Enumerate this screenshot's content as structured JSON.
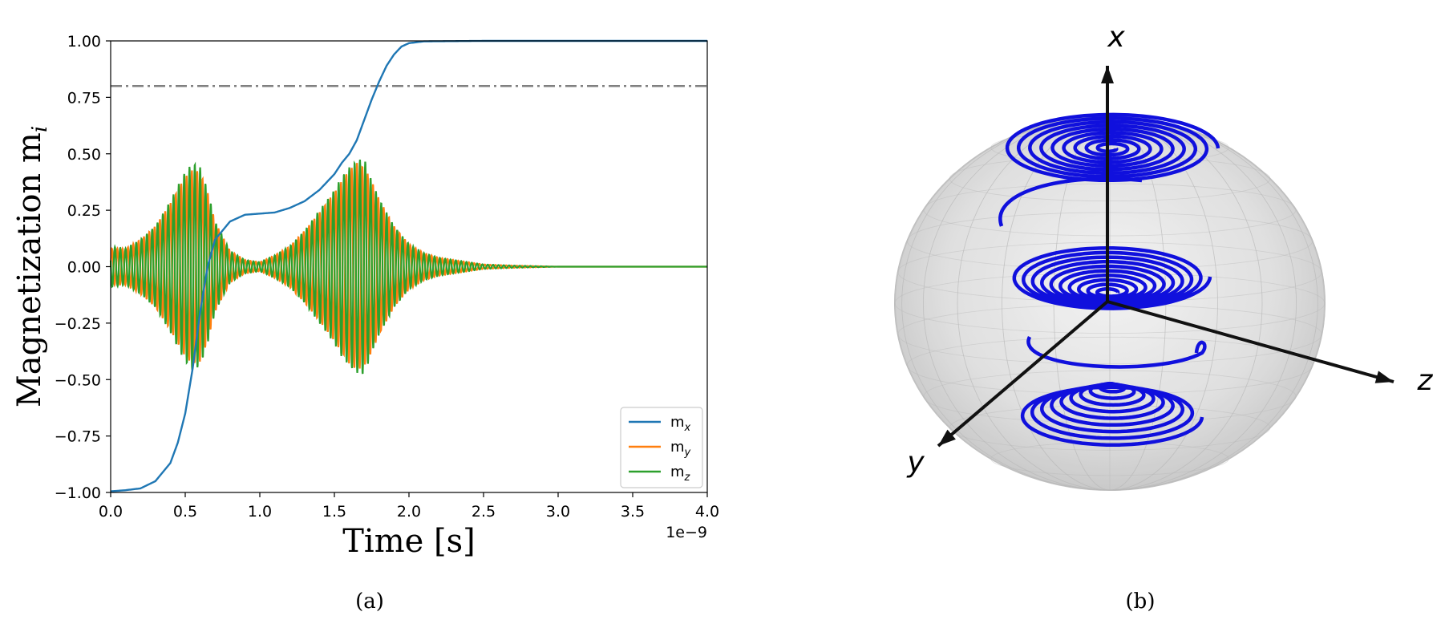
{
  "panels": [
    {
      "label": "(a)"
    },
    {
      "label": "(b)"
    }
  ],
  "colors": {
    "mx": "#1f77b4",
    "my": "#ff7f0e",
    "mz": "#2ca02c",
    "threshold": "#808080",
    "trajectory": "#1010dd",
    "axes3d": "#111111",
    "sphere": "#c8c8c8"
  },
  "chart_data": [
    {
      "type": "line",
      "xlabel": "Time [s]",
      "ylabel": "Magnetization m",
      "ylabel_subscript": "i",
      "x_scale_text": "1e−9",
      "xlim": [
        0.0,
        4.0
      ],
      "ylim": [
        -1.0,
        1.0
      ],
      "xticks": [
        "0.0",
        "0.5",
        "1.0",
        "1.5",
        "2.0",
        "2.5",
        "3.0",
        "3.5",
        "4.0"
      ],
      "yticks": [
        "1.00",
        "0.75",
        "0.50",
        "0.25",
        "0.00",
        "−0.25",
        "−0.50",
        "−0.75",
        "−1.00"
      ],
      "threshold_line": {
        "y": 0.8,
        "style": "dash-dot"
      },
      "legend": {
        "placement": "lower-right",
        "entries": [
          {
            "base": "m",
            "sub": "x"
          },
          {
            "base": "m",
            "sub": "y"
          },
          {
            "base": "m",
            "sub": "z"
          }
        ]
      },
      "series": [
        {
          "key": "mx",
          "points": [
            [
              0.0,
              -0.995
            ],
            [
              0.1,
              -0.99
            ],
            [
              0.2,
              -0.982
            ],
            [
              0.3,
              -0.95
            ],
            [
              0.4,
              -0.87
            ],
            [
              0.45,
              -0.78
            ],
            [
              0.5,
              -0.65
            ],
            [
              0.55,
              -0.45
            ],
            [
              0.6,
              -0.2
            ],
            [
              0.65,
              0.0
            ],
            [
              0.7,
              0.12
            ],
            [
              0.8,
              0.2
            ],
            [
              0.9,
              0.23
            ],
            [
              1.0,
              0.235
            ],
            [
              1.1,
              0.24
            ],
            [
              1.2,
              0.26
            ],
            [
              1.3,
              0.29
            ],
            [
              1.4,
              0.34
            ],
            [
              1.5,
              0.41
            ],
            [
              1.55,
              0.46
            ],
            [
              1.6,
              0.5
            ],
            [
              1.65,
              0.56
            ],
            [
              1.7,
              0.65
            ],
            [
              1.75,
              0.74
            ],
            [
              1.8,
              0.82
            ],
            [
              1.85,
              0.89
            ],
            [
              1.9,
              0.94
            ],
            [
              1.95,
              0.975
            ],
            [
              2.0,
              0.99
            ],
            [
              2.1,
              0.998
            ],
            [
              2.5,
              1.0
            ],
            [
              4.0,
              1.0
            ]
          ]
        },
        {
          "key": "my",
          "envelope": [
            [
              0.0,
              0.08
            ],
            [
              0.1,
              0.08
            ],
            [
              0.2,
              0.12
            ],
            [
              0.3,
              0.18
            ],
            [
              0.4,
              0.28
            ],
            [
              0.45,
              0.34
            ],
            [
              0.5,
              0.4
            ],
            [
              0.55,
              0.43
            ],
            [
              0.6,
              0.42
            ],
            [
              0.65,
              0.33
            ],
            [
              0.7,
              0.2
            ],
            [
              0.8,
              0.07
            ],
            [
              0.9,
              0.03
            ],
            [
              1.0,
              0.02
            ],
            [
              1.1,
              0.05
            ],
            [
              1.2,
              0.09
            ],
            [
              1.3,
              0.16
            ],
            [
              1.4,
              0.24
            ],
            [
              1.5,
              0.33
            ],
            [
              1.55,
              0.38
            ],
            [
              1.6,
              0.43
            ],
            [
              1.65,
              0.46
            ],
            [
              1.7,
              0.44
            ],
            [
              1.75,
              0.38
            ],
            [
              1.8,
              0.3
            ],
            [
              1.9,
              0.18
            ],
            [
              2.0,
              0.1
            ],
            [
              2.1,
              0.06
            ],
            [
              2.2,
              0.04
            ],
            [
              2.3,
              0.03
            ],
            [
              2.4,
              0.02
            ],
            [
              2.5,
              0.01
            ],
            [
              2.7,
              0.005
            ],
            [
              3.0,
              0.0
            ],
            [
              4.0,
              0.0
            ]
          ]
        },
        {
          "key": "mz",
          "envelope": [
            [
              0.0,
              0.09
            ],
            [
              0.1,
              0.08
            ],
            [
              0.2,
              0.12
            ],
            [
              0.3,
              0.18
            ],
            [
              0.4,
              0.29
            ],
            [
              0.45,
              0.36
            ],
            [
              0.5,
              0.42
            ],
            [
              0.55,
              0.46
            ],
            [
              0.6,
              0.44
            ],
            [
              0.65,
              0.34
            ],
            [
              0.7,
              0.2
            ],
            [
              0.8,
              0.07
            ],
            [
              0.9,
              0.03
            ],
            [
              1.0,
              0.02
            ],
            [
              1.1,
              0.05
            ],
            [
              1.2,
              0.09
            ],
            [
              1.3,
              0.16
            ],
            [
              1.4,
              0.25
            ],
            [
              1.5,
              0.34
            ],
            [
              1.55,
              0.4
            ],
            [
              1.6,
              0.44
            ],
            [
              1.65,
              0.47
            ],
            [
              1.7,
              0.48
            ],
            [
              1.75,
              0.38
            ],
            [
              1.8,
              0.3
            ],
            [
              1.9,
              0.18
            ],
            [
              2.0,
              0.1
            ],
            [
              2.1,
              0.06
            ],
            [
              2.2,
              0.04
            ],
            [
              2.3,
              0.03
            ],
            [
              2.4,
              0.02
            ],
            [
              2.5,
              0.01
            ],
            [
              2.7,
              0.005
            ],
            [
              3.0,
              0.0
            ],
            [
              4.0,
              0.0
            ]
          ]
        }
      ]
    },
    {
      "type": "3d-trajectory",
      "axis_labels": {
        "x": "x",
        "y": "y",
        "z": "z"
      },
      "description_free": true
    }
  ]
}
